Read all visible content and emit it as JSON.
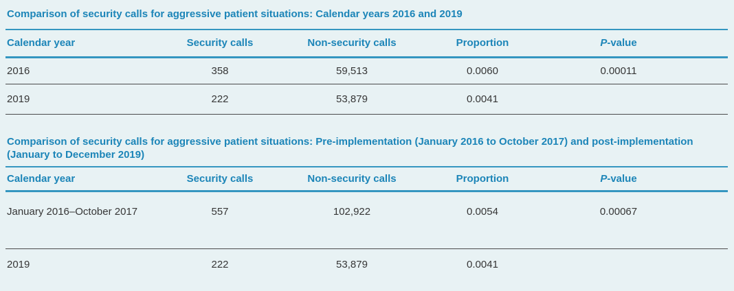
{
  "style": {
    "accent_blue": "#1C85B8",
    "rule_blue": "#3496C0",
    "rule_gray": "#4A4A4A",
    "body_text": "#363636",
    "background": "#E8F2F4"
  },
  "tables": [
    {
      "title": "Comparison of security calls for aggressive patient situations: Calendar years 2016 and 2019",
      "columns": [
        "Calendar year",
        "Security calls",
        "Non-security calls",
        "Proportion"
      ],
      "p_header": {
        "italic_part": "P",
        "rest": "-value"
      },
      "rows": [
        [
          "2016",
          "358",
          "59,513",
          "0.0060",
          "0.00011"
        ],
        [
          "2019",
          "222",
          "53,879",
          "0.0041",
          ""
        ]
      ]
    },
    {
      "title": "Comparison of security calls for aggressive patient situations: Pre-implementation (January 2016 to October 2017) and post-implementation (January to December 2019)",
      "columns": [
        "Calendar year",
        "Security calls",
        "Non-security calls",
        "Proportion"
      ],
      "p_header": {
        "italic_part": "P",
        "rest": "-value"
      },
      "rows": [
        [
          "January 2016–October 2017",
          "557",
          "102,922",
          "0.0054",
          "0.00067"
        ],
        [
          "2019",
          "222",
          "53,879",
          "0.0041",
          ""
        ]
      ]
    }
  ]
}
